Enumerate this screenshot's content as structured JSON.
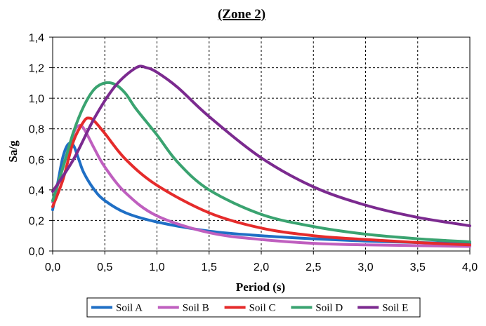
{
  "chart_data": {
    "type": "line",
    "title": "(Zone 2)",
    "xlabel": "Period (s)",
    "ylabel": "Sa/g",
    "xlim": [
      0,
      4
    ],
    "ylim": [
      0,
      1.4
    ],
    "x_ticks": [
      0,
      0.5,
      1,
      1.5,
      2,
      2.5,
      3,
      3.5,
      4
    ],
    "x_tick_labels": [
      "0,0",
      "0,5",
      "1,0",
      "1,5",
      "2,0",
      "2,5",
      "3,0",
      "3,5",
      "4,0"
    ],
    "y_ticks": [
      0,
      0.2,
      0.4,
      0.6,
      0.8,
      1.0,
      1.2,
      1.4
    ],
    "y_tick_labels": [
      "0,0",
      "0,2",
      "0,4",
      "0,6",
      "0,8",
      "1,0",
      "1,2",
      "1,4"
    ],
    "grid": "dashed",
    "legend_position": "bottom",
    "series": [
      {
        "name": "Soil A",
        "color": "#1f6fc5",
        "points": [
          [
            0,
            0.27
          ],
          [
            0.05,
            0.45
          ],
          [
            0.1,
            0.62
          ],
          [
            0.15,
            0.7
          ],
          [
            0.2,
            0.69
          ],
          [
            0.25,
            0.6
          ],
          [
            0.3,
            0.51
          ],
          [
            0.4,
            0.4
          ],
          [
            0.5,
            0.33
          ],
          [
            0.7,
            0.25
          ],
          [
            1.0,
            0.19
          ],
          [
            1.5,
            0.13
          ],
          [
            2.0,
            0.1
          ],
          [
            2.5,
            0.08
          ],
          [
            3.0,
            0.065
          ],
          [
            3.5,
            0.055
          ],
          [
            4.0,
            0.05
          ]
        ]
      },
      {
        "name": "Soil B",
        "color": "#bf5fbf",
        "points": [
          [
            0,
            0.32
          ],
          [
            0.1,
            0.55
          ],
          [
            0.2,
            0.77
          ],
          [
            0.25,
            0.82
          ],
          [
            0.3,
            0.8
          ],
          [
            0.4,
            0.67
          ],
          [
            0.5,
            0.55
          ],
          [
            0.7,
            0.38
          ],
          [
            1.0,
            0.23
          ],
          [
            1.5,
            0.12
          ],
          [
            2.0,
            0.075
          ],
          [
            2.5,
            0.05
          ],
          [
            3.0,
            0.04
          ],
          [
            3.5,
            0.035
          ],
          [
            4.0,
            0.03
          ]
        ]
      },
      {
        "name": "Soil C",
        "color": "#e52b2b",
        "points": [
          [
            0,
            0.29
          ],
          [
            0.1,
            0.47
          ],
          [
            0.2,
            0.72
          ],
          [
            0.3,
            0.85
          ],
          [
            0.35,
            0.87
          ],
          [
            0.4,
            0.85
          ],
          [
            0.5,
            0.77
          ],
          [
            0.7,
            0.6
          ],
          [
            1.0,
            0.43
          ],
          [
            1.5,
            0.25
          ],
          [
            2.0,
            0.15
          ],
          [
            2.5,
            0.1
          ],
          [
            3.0,
            0.075
          ],
          [
            3.5,
            0.055
          ],
          [
            4.0,
            0.04
          ]
        ]
      },
      {
        "name": "Soil D",
        "color": "#3aa370",
        "points": [
          [
            0,
            0.33
          ],
          [
            0.1,
            0.55
          ],
          [
            0.2,
            0.78
          ],
          [
            0.3,
            0.95
          ],
          [
            0.4,
            1.06
          ],
          [
            0.5,
            1.1
          ],
          [
            0.6,
            1.09
          ],
          [
            0.7,
            1.03
          ],
          [
            0.8,
            0.93
          ],
          [
            1.0,
            0.76
          ],
          [
            1.2,
            0.58
          ],
          [
            1.5,
            0.4
          ],
          [
            2.0,
            0.24
          ],
          [
            2.5,
            0.16
          ],
          [
            3.0,
            0.11
          ],
          [
            3.5,
            0.08
          ],
          [
            4.0,
            0.06
          ]
        ]
      },
      {
        "name": "Soil E",
        "color": "#7b2a8f",
        "points": [
          [
            0,
            0.39
          ],
          [
            0.2,
            0.6
          ],
          [
            0.4,
            0.87
          ],
          [
            0.6,
            1.08
          ],
          [
            0.8,
            1.2
          ],
          [
            0.9,
            1.2
          ],
          [
            1.0,
            1.17
          ],
          [
            1.2,
            1.07
          ],
          [
            1.5,
            0.88
          ],
          [
            2.0,
            0.61
          ],
          [
            2.5,
            0.42
          ],
          [
            3.0,
            0.3
          ],
          [
            3.5,
            0.22
          ],
          [
            4.0,
            0.165
          ]
        ]
      }
    ]
  }
}
